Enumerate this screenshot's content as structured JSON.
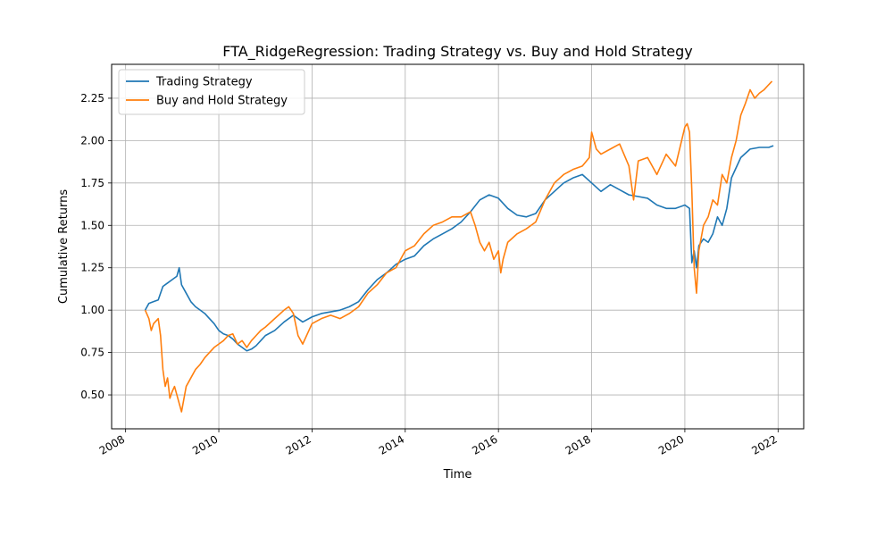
{
  "chart_data": {
    "type": "line",
    "title": "FTA_RidgeRegression: Trading Strategy vs. Buy and Hold Strategy",
    "xlabel": "Time",
    "ylabel": "Cumulative Returns",
    "xlim": [
      2007.7,
      2022.55
    ],
    "ylim": [
      0.3,
      2.45
    ],
    "x_ticks": [
      2008,
      2010,
      2012,
      2014,
      2016,
      2018,
      2020,
      2022
    ],
    "y_ticks": [
      0.5,
      0.75,
      1.0,
      1.25,
      1.5,
      1.75,
      2.0,
      2.25
    ],
    "y_tick_labels": [
      "0.50",
      "0.75",
      "1.00",
      "1.25",
      "1.50",
      "1.75",
      "2.00",
      "2.25"
    ],
    "grid": true,
    "legend_position": "upper-left",
    "series": [
      {
        "name": "Trading Strategy",
        "color": "#1f77b4",
        "x": [
          2008.42,
          2008.5,
          2008.6,
          2008.7,
          2008.8,
          2008.9,
          2009.0,
          2009.1,
          2009.15,
          2009.2,
          2009.3,
          2009.4,
          2009.5,
          2009.6,
          2009.7,
          2009.8,
          2009.9,
          2010.0,
          2010.1,
          2010.2,
          2010.3,
          2010.4,
          2010.5,
          2010.6,
          2010.7,
          2010.8,
          2010.9,
          2011.0,
          2011.2,
          2011.4,
          2011.6,
          2011.8,
          2012.0,
          2012.2,
          2012.4,
          2012.6,
          2012.8,
          2013.0,
          2013.2,
          2013.4,
          2013.6,
          2013.8,
          2014.0,
          2014.2,
          2014.4,
          2014.6,
          2014.8,
          2015.0,
          2015.2,
          2015.4,
          2015.6,
          2015.8,
          2016.0,
          2016.2,
          2016.4,
          2016.6,
          2016.8,
          2017.0,
          2017.2,
          2017.4,
          2017.6,
          2017.8,
          2018.0,
          2018.2,
          2018.4,
          2018.6,
          2018.8,
          2019.0,
          2019.2,
          2019.4,
          2019.6,
          2019.8,
          2020.0,
          2020.1,
          2020.15,
          2020.2,
          2020.25,
          2020.3,
          2020.4,
          2020.5,
          2020.6,
          2020.7,
          2020.8,
          2020.9,
          2021.0,
          2021.2,
          2021.4,
          2021.6,
          2021.8,
          2021.9
        ],
        "y": [
          1.0,
          1.04,
          1.05,
          1.06,
          1.14,
          1.16,
          1.18,
          1.2,
          1.25,
          1.15,
          1.1,
          1.05,
          1.02,
          1.0,
          0.98,
          0.95,
          0.92,
          0.88,
          0.86,
          0.85,
          0.83,
          0.8,
          0.78,
          0.76,
          0.77,
          0.79,
          0.82,
          0.85,
          0.88,
          0.93,
          0.97,
          0.93,
          0.96,
          0.98,
          0.99,
          1.0,
          1.02,
          1.05,
          1.12,
          1.18,
          1.22,
          1.27,
          1.3,
          1.32,
          1.38,
          1.42,
          1.45,
          1.48,
          1.52,
          1.58,
          1.65,
          1.68,
          1.66,
          1.6,
          1.56,
          1.55,
          1.57,
          1.65,
          1.7,
          1.75,
          1.78,
          1.8,
          1.75,
          1.7,
          1.74,
          1.71,
          1.68,
          1.67,
          1.66,
          1.62,
          1.6,
          1.6,
          1.62,
          1.6,
          1.28,
          1.35,
          1.25,
          1.38,
          1.42,
          1.4,
          1.45,
          1.55,
          1.5,
          1.6,
          1.78,
          1.9,
          1.95,
          1.96,
          1.96,
          1.97
        ]
      },
      {
        "name": "Buy and Hold Strategy",
        "color": "#ff7f0e",
        "x": [
          2008.42,
          2008.5,
          2008.55,
          2008.6,
          2008.7,
          2008.75,
          2008.8,
          2008.85,
          2008.9,
          2008.95,
          2009.0,
          2009.05,
          2009.1,
          2009.15,
          2009.2,
          2009.3,
          2009.4,
          2009.5,
          2009.6,
          2009.7,
          2009.8,
          2009.9,
          2010.0,
          2010.1,
          2010.2,
          2010.3,
          2010.4,
          2010.5,
          2010.6,
          2010.7,
          2010.8,
          2010.9,
          2011.0,
          2011.2,
          2011.4,
          2011.5,
          2011.6,
          2011.7,
          2011.8,
          2012.0,
          2012.2,
          2012.4,
          2012.6,
          2012.8,
          2013.0,
          2013.2,
          2013.4,
          2013.6,
          2013.8,
          2014.0,
          2014.2,
          2014.4,
          2014.6,
          2014.8,
          2015.0,
          2015.2,
          2015.4,
          2015.5,
          2015.6,
          2015.7,
          2015.8,
          2015.9,
          2016.0,
          2016.05,
          2016.1,
          2016.2,
          2016.4,
          2016.6,
          2016.8,
          2017.0,
          2017.2,
          2017.4,
          2017.6,
          2017.8,
          2017.95,
          2018.0,
          2018.1,
          2018.2,
          2018.4,
          2018.6,
          2018.8,
          2018.9,
          2019.0,
          2019.2,
          2019.4,
          2019.6,
          2019.8,
          2020.0,
          2020.05,
          2020.1,
          2020.15,
          2020.2,
          2020.25,
          2020.3,
          2020.4,
          2020.5,
          2020.6,
          2020.7,
          2020.8,
          2020.9,
          2021.0,
          2021.1,
          2021.2,
          2021.3,
          2021.4,
          2021.5,
          2021.6,
          2021.7,
          2021.8,
          2021.87
        ],
        "y": [
          1.0,
          0.95,
          0.88,
          0.92,
          0.95,
          0.85,
          0.65,
          0.55,
          0.6,
          0.48,
          0.52,
          0.55,
          0.5,
          0.45,
          0.4,
          0.55,
          0.6,
          0.65,
          0.68,
          0.72,
          0.75,
          0.78,
          0.8,
          0.82,
          0.85,
          0.86,
          0.8,
          0.82,
          0.78,
          0.82,
          0.85,
          0.88,
          0.9,
          0.95,
          1.0,
          1.02,
          0.98,
          0.85,
          0.8,
          0.92,
          0.95,
          0.97,
          0.95,
          0.98,
          1.02,
          1.1,
          1.15,
          1.22,
          1.25,
          1.35,
          1.38,
          1.45,
          1.5,
          1.52,
          1.55,
          1.55,
          1.58,
          1.5,
          1.4,
          1.35,
          1.4,
          1.3,
          1.35,
          1.22,
          1.3,
          1.4,
          1.45,
          1.48,
          1.52,
          1.65,
          1.75,
          1.8,
          1.83,
          1.85,
          1.9,
          2.05,
          1.95,
          1.92,
          1.95,
          1.98,
          1.85,
          1.65,
          1.88,
          1.9,
          1.8,
          1.92,
          1.85,
          2.08,
          2.1,
          2.05,
          1.7,
          1.25,
          1.1,
          1.35,
          1.5,
          1.55,
          1.65,
          1.62,
          1.8,
          1.75,
          1.9,
          2.0,
          2.15,
          2.22,
          2.3,
          2.25,
          2.28,
          2.3,
          2.33,
          2.35
        ]
      }
    ]
  }
}
